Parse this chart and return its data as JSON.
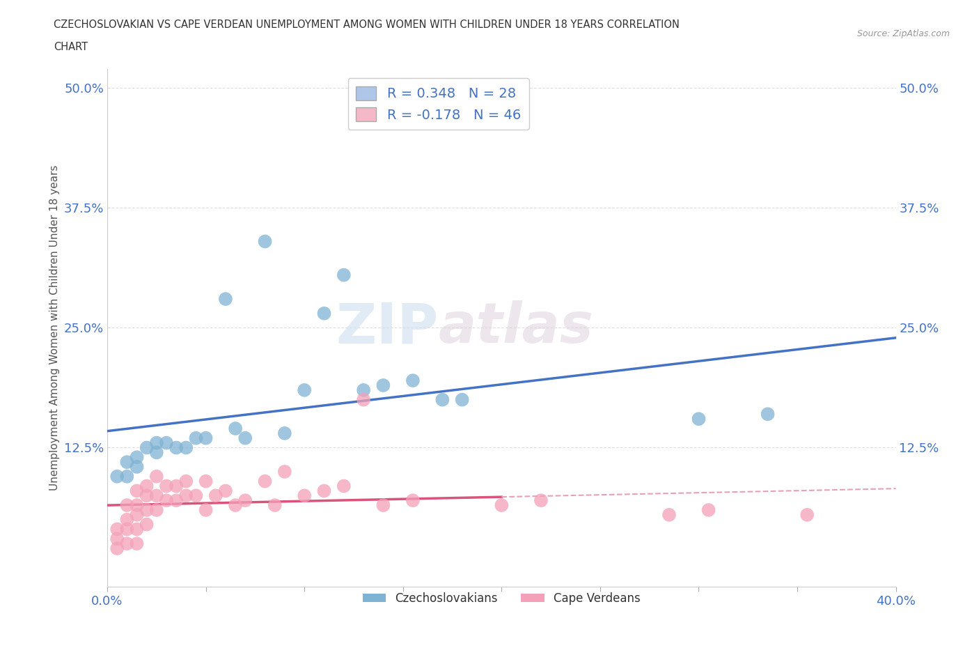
{
  "title_line1": "CZECHOSLOVAKIAN VS CAPE VERDEAN UNEMPLOYMENT AMONG WOMEN WITH CHILDREN UNDER 18 YEARS CORRELATION",
  "title_line2": "CHART",
  "source": "Source: ZipAtlas.com",
  "ylabel": "Unemployment Among Women with Children Under 18 years",
  "xlim": [
    0.0,
    0.4
  ],
  "ylim": [
    -0.02,
    0.52
  ],
  "xticks": [
    0.0,
    0.05,
    0.1,
    0.15,
    0.2,
    0.25,
    0.3,
    0.35,
    0.4
  ],
  "xticklabels": [
    "0.0%",
    "",
    "",
    "",
    "",
    "",
    "",
    "",
    "40.0%"
  ],
  "ytick_positions": [
    0.125,
    0.25,
    0.375,
    0.5
  ],
  "ytick_labels": [
    "12.5%",
    "25.0%",
    "37.5%",
    "50.0%"
  ],
  "background_color": "#ffffff",
  "watermark_text": "ZIP",
  "watermark_text2": "atlas",
  "legend_items": [
    {
      "label": "R = 0.348   N = 28",
      "color": "#aec6e8"
    },
    {
      "label": "R = -0.178   N = 46",
      "color": "#f4b8c8"
    }
  ],
  "czech_color": "#7fb3d3",
  "cape_color": "#f4a0b8",
  "czech_line_color": "#4472c4",
  "cape_line_color": "#d9537a",
  "cape_line_dash_color": "#e8a0b8",
  "grid_color": "#e0e0e0",
  "czech_points": [
    [
      0.005,
      0.095
    ],
    [
      0.01,
      0.11
    ],
    [
      0.01,
      0.095
    ],
    [
      0.015,
      0.115
    ],
    [
      0.015,
      0.105
    ],
    [
      0.02,
      0.125
    ],
    [
      0.025,
      0.13
    ],
    [
      0.025,
      0.12
    ],
    [
      0.03,
      0.13
    ],
    [
      0.035,
      0.125
    ],
    [
      0.04,
      0.125
    ],
    [
      0.045,
      0.135
    ],
    [
      0.05,
      0.135
    ],
    [
      0.06,
      0.28
    ],
    [
      0.065,
      0.145
    ],
    [
      0.07,
      0.135
    ],
    [
      0.08,
      0.34
    ],
    [
      0.09,
      0.14
    ],
    [
      0.1,
      0.185
    ],
    [
      0.11,
      0.265
    ],
    [
      0.12,
      0.305
    ],
    [
      0.13,
      0.185
    ],
    [
      0.14,
      0.19
    ],
    [
      0.155,
      0.195
    ],
    [
      0.17,
      0.175
    ],
    [
      0.18,
      0.175
    ],
    [
      0.3,
      0.155
    ],
    [
      0.335,
      0.16
    ]
  ],
  "cape_points": [
    [
      0.005,
      0.04
    ],
    [
      0.005,
      0.03
    ],
    [
      0.005,
      0.02
    ],
    [
      0.01,
      0.065
    ],
    [
      0.01,
      0.05
    ],
    [
      0.01,
      0.04
    ],
    [
      0.01,
      0.025
    ],
    [
      0.015,
      0.08
    ],
    [
      0.015,
      0.065
    ],
    [
      0.015,
      0.055
    ],
    [
      0.015,
      0.04
    ],
    [
      0.015,
      0.025
    ],
    [
      0.02,
      0.085
    ],
    [
      0.02,
      0.075
    ],
    [
      0.02,
      0.06
    ],
    [
      0.02,
      0.045
    ],
    [
      0.025,
      0.095
    ],
    [
      0.025,
      0.075
    ],
    [
      0.025,
      0.06
    ],
    [
      0.03,
      0.085
    ],
    [
      0.03,
      0.07
    ],
    [
      0.035,
      0.085
    ],
    [
      0.035,
      0.07
    ],
    [
      0.04,
      0.09
    ],
    [
      0.04,
      0.075
    ],
    [
      0.045,
      0.075
    ],
    [
      0.05,
      0.09
    ],
    [
      0.05,
      0.06
    ],
    [
      0.055,
      0.075
    ],
    [
      0.06,
      0.08
    ],
    [
      0.065,
      0.065
    ],
    [
      0.07,
      0.07
    ],
    [
      0.08,
      0.09
    ],
    [
      0.085,
      0.065
    ],
    [
      0.09,
      0.1
    ],
    [
      0.1,
      0.075
    ],
    [
      0.11,
      0.08
    ],
    [
      0.12,
      0.085
    ],
    [
      0.13,
      0.175
    ],
    [
      0.14,
      0.065
    ],
    [
      0.155,
      0.07
    ],
    [
      0.2,
      0.065
    ],
    [
      0.22,
      0.07
    ],
    [
      0.285,
      0.055
    ],
    [
      0.305,
      0.06
    ],
    [
      0.355,
      0.055
    ]
  ]
}
